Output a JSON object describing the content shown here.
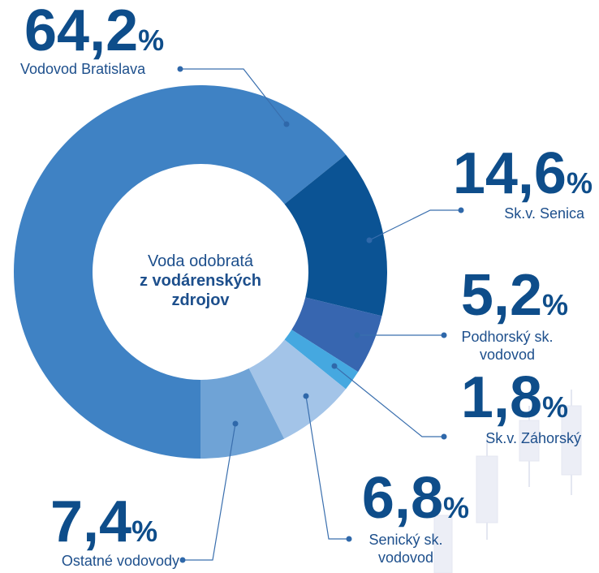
{
  "chart_data": {
    "type": "donut",
    "center_text": [
      "Voda odobratá",
      "z vodárenských",
      "zdrojov"
    ],
    "categories": [
      "Vodovod Bratislava",
      "Sk.v. Senica",
      "Podhorský sk. vodovod",
      "Sk.v. Záhorský",
      "Senický sk. vodovod",
      "Ostatné vodovody"
    ],
    "values": [
      64.2,
      14.6,
      5.2,
      1.8,
      6.8,
      7.4
    ],
    "value_labels": [
      "64,2",
      "14,6",
      "5,2",
      "1,8",
      "6,8",
      "7,4"
    ],
    "unit": "%",
    "colors": [
      "#3f82c4",
      "#0b5394",
      "#3766b0",
      "#45a8e0",
      "#a3c4e8",
      "#6fa3d6"
    ]
  }
}
